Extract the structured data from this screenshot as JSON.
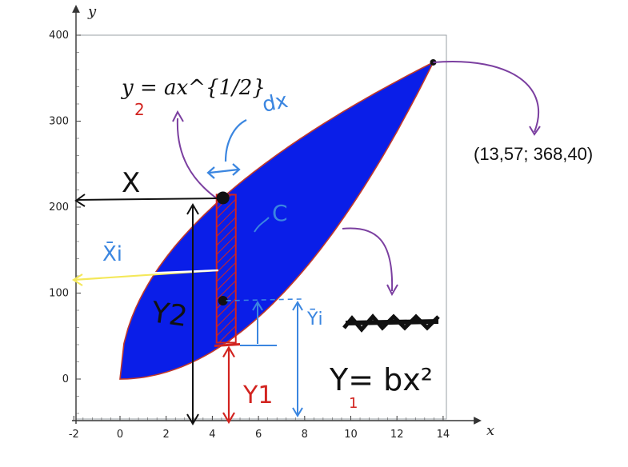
{
  "chart_data": {
    "type": "area",
    "xlabel": "x",
    "ylabel": "y",
    "xlim": [
      -2,
      15
    ],
    "ylim": [
      -55,
      415
    ],
    "x_ticks": [
      -2,
      0,
      2,
      4,
      6,
      8,
      10,
      12,
      14
    ],
    "y_ticks": [
      0,
      100,
      200,
      300,
      400
    ],
    "grid": false,
    "fill_color": "#0a1ee8",
    "edge_color": "#c0392b",
    "upper_curve": {
      "label": "y = ax^{1/2}",
      "a": 100.0,
      "b_exp": 0.5
    },
    "lower_curve": {
      "label": "y = bx^2",
      "b": 2.0,
      "exp": 2
    },
    "intersection": {
      "x": 13.57,
      "y": 368.4,
      "label": "(13,57; 368,40)"
    },
    "strip_x": 4.6,
    "annotations": {
      "eq_upper": "y = ax^{1/2}",
      "eq_upper_sub": "2",
      "dx": "dx",
      "X": "X",
      "Xi": "X̄i",
      "C": "C",
      "Y2": "Y2",
      "Y1": "Y1",
      "Yi": "Ȳi",
      "eq_lower": "Y= bx²",
      "eq_lower_sub": "1"
    }
  },
  "colors": {
    "blue_ink": "#3b86e0",
    "purple_ink": "#7b3fa0",
    "red_ink": "#d2231f",
    "black_ink": "#111111",
    "yellow_ink": "#f4e85a"
  }
}
